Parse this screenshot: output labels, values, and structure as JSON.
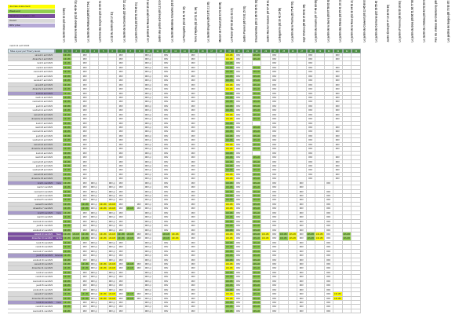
{
  "legend": [
    {
      "label": "Journée événement",
      "color": "#ffff00"
    },
    {
      "label": "Week-end",
      "color": "#92d050"
    },
    {
      "label": "Vacances scolaires / J.F.",
      "color": "#7a4e9f"
    },
    {
      "label": "Ouvert",
      "color": "#d9d9d9"
    },
    {
      "label": "RDV privé",
      "color": "#b5a9d6"
    }
  ],
  "header_date": "mardi 11 avril 2023",
  "column_headers": [
    "Le Jardin Oasis (03 33 10 89)",
    "La Blanche Maison (02 83 49 54 31)",
    "Le Jardin du Rolland (06 59 17 54)",
    "La ferme des bruyères (02 23 06 01 14)",
    "Le 22 du Jardin (03 17 21)",
    "Le Jardin de la Corolle (02 35 57 21)",
    "Le jardin Chez (02 35 51 75 40 31)",
    "Les jardins de Nouan (06 07 25 05 14)",
    "Jardin des petits arbres (06 12 33 24)",
    "Le Jardin Mandelou Granville (03 37)",
    "La Planquette (02 22 41 76 19)",
    "Terre d'Hydra (02 10 51 91 34)",
    "Le Jardin Bruyère (06 18 51 11 30)",
    "Manoir de l'Ouest (02 33 51 40 06)",
    "Le Rosier (07 83 28 21 02 15)",
    "Jardin Prunier (06 73 81 15 61)",
    "Brouchevilles (06 11 86 70 06 51 33)",
    "Jardin Rocher Couture (07 97 34 81 03)",
    "La Baguierre (02 33 42 14 58)",
    "Le jardin de la Prairie (02 75 47 91)",
    "Sept Chênes (06 88 15 90 91 06)",
    "Le jardin du moulin (07 77 48 80 09)",
    "Le jardin de la Sacre (06 87 58 02 82)",
    "Le jardin des tilleuls (02 35 41 16 11)",
    "Le jardin de la Rose (02 33 34 52 21)",
    "Le jardin du Couvent (06 12 45 80 81)",
    "Le jardin de Cormoran (02 39 55 42 21 30)",
    "Jardin Émile (06 77 10 20 53 30)",
    "Le jardin d'Yvonne (06 63 55 30 83)",
    "Le jardin du Bois (06 66 51 96 77 90)",
    "Le Jardin du château (06 42 52 28 62)",
    "Parc du château de Chamberoy (06 46 99)",
    "Les jardins de Garges (06 73 93 05 30)"
  ],
  "grid_header": {
    "label": "Mise à jour par Thierry lauret",
    "column_numbers": [
      "1",
      "2",
      "3",
      "4",
      "5",
      "6",
      "7",
      "8",
      "9",
      "10",
      "11",
      "12",
      "13",
      "14",
      "15",
      "16",
      "17",
      "18",
      "19",
      "20",
      "21",
      "22",
      "23",
      "24",
      "25",
      "26",
      "27",
      "28",
      "29",
      "30",
      "31",
      "32",
      "33"
    ]
  },
  "rows": [
    {
      "date": "samedi 1 avril 2023",
      "side": "",
      "type": "weekend",
      "cells": "g:14h-18h|w:|w:RDV|w:|w:|w:|w:RDV|w:|w:|w:RDV gr|w:|w:RDV|w:|w:|w:RDV|w:|w:|w:|y:14h-18h|w:RDV|w:|g:14h-18h|w:|w:RDV|w:|w:|w:|w:RDV|w:|w:|w:RDV|w:|w:"
    },
    {
      "date": "dimanche 2 avril 2023",
      "side": "",
      "type": "weekend",
      "cells": "g:14h-18h|w:|w:RDV|w:|w:|w:|w:RDV|w:|w:|w:RDV gr|w:|w:RDV|w:|w:|w:RDV|w:|w:|w:|y:14h-18h|w:RDV|w:|g:10h-12h|w:|w:RDV|w:|w:|w:|w:RDV|w:|w:|w:RDV|w:|w:"
    },
    {
      "date": "lundi 3 avril 2023",
      "side": "",
      "type": "",
      "cells": "g:14h-18h|w:|w:RDV|w:|w:|w:|w:RDV|w:|w:|w:RDV gr|w:|w:RDV|w:|w:|w:RDV|w:|w:|w:|g:14h-18h|w:RDV|w:|w:|w:|w:RDV|w:|w:|w:|w:RDV|w:|w:|w:|w:|w:"
    },
    {
      "date": "mardi 4 avril 2023",
      "side": "",
      "type": "",
      "cells": "g:14h-18h|w:|w:RDV|w:|w:|w:|w:RDV|w:|w:|w:RDV gr|w:|w:RDV|w:|w:|w:RDV|w:|w:|w:|g:14h-18h|w:RDV|w:|g:10h-12h|w:|w:RDV|w:|w:|w:|w:RDV|w:|w:|w:RDV|w:|w:"
    },
    {
      "date": "mercredi 5 avril 2023",
      "side": "",
      "type": "",
      "cells": "g:14h-18h|w:|w:RDV|w:|w:|w:|w:RDV|w:|w:|w:RDV gr|w:|w:RDV|w:|w:|w:RDV|w:|w:|w:|g:14h-18h|w:RDV|w:|g:10h-12h|w:|w:RDV|w:|w:|w:|w:RDV|w:|w:|w:RDV|w:|w:"
    },
    {
      "date": "jeudi 6 avril 2023",
      "side": "",
      "type": "",
      "cells": "g:14h-18h|w:|w:RDV|w:|w:|w:|w:RDV|w:|w:|w:RDV gr|w:|w:RDV|w:|w:|w:RDV|w:|w:|w:|g:14h-18h|w:RDV|w:|g:10h-12h|w:|w:RDV|w:|w:|w:|w:RDV|w:|w:|w:RDV|w:|w:"
    },
    {
      "date": "vendredi 7 avril 2023",
      "side": "",
      "type": "",
      "cells": "g:14h-18h|w:|w:RDV|w:|w:|w:|w:RDV|w:|w:|w:RDV gr|w:|w:RDV|w:|w:|w:RDV|w:|w:|w:|g:14h-18h|w:RDV|w:|g:10h-12h|w:|w:RDV|w:|w:|w:|w:RDV|w:|w:|w:RDV|w:|w:"
    },
    {
      "date": "samedi 8 avril 2023",
      "side": "",
      "type": "weekend",
      "cells": "g:14h-18h|w:|w:RDV|w:|w:|w:|w:RDV|w:|w:|w:RDV gr|w:|w:RDV|w:|w:|w:RDV|w:|w:|w:|y:14h-18h|w:RDV|w:|g:10h-12h|w:|w:RDV|w:|w:|w:|w:RDV|w:|w:|w:RDV|w:|w:"
    },
    {
      "date": "dimanche 9 avril 2023",
      "side": "",
      "type": "weekend",
      "cells": "g:14h-18h|w:|w:RDV|w:|w:|w:|w:RDV|w:|w:|w:RDV gr|w:|w:RDV|w:|w:|w:RDV|w:|w:|w:|y:14h-18h|w:RDV|w:|g:10h-12h|w:|w:RDV|w:|w:|w:|w:RDV|w:|w:|w:RDV|w:|w:"
    },
    {
      "date": "lundi 10 avril 2023",
      "side": "",
      "type": "holiday",
      "cells": "g:14h-18h|w:|w:RDV|w:|w:|w:|w:RDV|w:|w:|w:RDV gr|w:|w:RDV|w:|w:|w:RDV|w:|w:|w:|g:14h-18h|w:RDV|w:|g:10h-12h|w:|w:RDV|w:|w:|w:|w:RDV|w:|w:|w:RDV|w:|w:"
    },
    {
      "date": "mardi 11 avril 2023",
      "side": "",
      "type": "",
      "cells": "g:14h-18h|w:|w:RDV|w:|w:|w:|w:RDV|w:|w:|w:RDV gr|w:|w:RDV|w:|w:|w:RDV|w:|w:|w:|g:14h-18h|w:RDV|w:|g:10h-12h|w:|w:RDV|w:|w:|w:|w:RDV|w:|w:|w:RDV|w:|w:"
    },
    {
      "date": "mercredi 12 avril 2023",
      "side": "",
      "type": "",
      "cells": "g:14h-18h|w:|w:RDV|w:|w:|w:|w:RDV|w:|w:|w:RDV gr|w:|w:RDV|w:|w:|w:RDV|w:|w:|w:|g:14h-18h|w:RDV|w:|g:10h-12h|w:|w:RDV|w:|w:|w:|w:RDV|w:|w:|w:RDV|w:|w:"
    },
    {
      "date": "jeudi 13 avril 2023",
      "side": "",
      "type": "",
      "cells": "g:14h-18h|w:|w:RDV|w:|w:|w:|w:RDV|w:|w:|w:RDV gr|w:|w:RDV|w:|w:|w:RDV|w:|w:|w:|g:14h-18h|w:RDV|w:|g:10h-12h|w:|w:RDV|w:|w:|w:|w:RDV|w:|w:|w:RDV|w:|w:"
    },
    {
      "date": "vendredi 14 avril 2023",
      "side": "",
      "type": "",
      "cells": "g:14h-18h|w:|w:RDV|w:|w:|w:|w:RDV|w:|w:|w:RDV gr|w:|w:RDV|w:|w:|w:RDV|w:|w:|w:|g:14h-18h|w:RDV|w:|g:10h-12h|w:|w:RDV|w:|w:|w:|w:RDV|w:|w:|w:RDV|w:|w:"
    },
    {
      "date": "samedi 15 avril 2023",
      "side": "",
      "type": "weekend",
      "cells": "g:14h-18h|w:|w:RDV|w:|w:|w:|w:RDV|w:|w:|w:RDV gr|w:|w:RDV|w:|w:|w:RDV|w:|w:|w:|y:14h-18h|w:RDV|w:|g:10h-12h|w:|w:RDV|w:|w:|w:|w:RDV|w:|w:|w:RDV|w:|w:"
    },
    {
      "date": "dimanche 16 avril 2023",
      "side": "",
      "type": "weekend",
      "cells": "g:14h-18h|w:|w:RDV|w:|w:|w:|w:RDV|w:|w:|w:RDV gr|w:|w:RDV|w:|w:|w:RDV|w:|w:|w:|y:14h-18h|w:RDV|w:|g:10h-12h|w:|w:RDV|w:|w:|w:|w:RDV|w:|w:|w:RDV|w:|w:"
    },
    {
      "date": "lundi 17 avril 2023",
      "side": "",
      "type": "",
      "cells": "g:14h-18h|w:|w:RDV|w:|w:|w:|w:RDV|w:|w:|w:RDV gr|w:|w:RDV|w:|w:|w:RDV|w:|w:|w:|g:14h-18h|w:RDV|w:|w:|w:|w:RDV|w:|w:|w:|w:RDV|w:|w:|w:|w:|w:"
    },
    {
      "date": "mardi 18 avril 2023",
      "side": "",
      "type": "",
      "cells": "g:14h-18h|w:|w:RDV|w:|w:|w:|w:RDV|w:|w:|w:RDV gr|w:|w:RDV|w:|w:|w:RDV|w:|w:|w:|g:14h-18h|w:RDV|w:|g:10h-12h|w:|w:RDV|w:|w:|w:|w:RDV|w:|w:|w:RDV|w:|w:"
    },
    {
      "date": "mercredi 19 avril 2023",
      "side": "",
      "type": "",
      "cells": "g:14h-18h|w:|w:RDV|w:|w:|w:|w:RDV|w:|w:|w:RDV gr|w:|w:RDV|w:|w:|w:RDV|w:|w:|w:|g:14h-18h|w:RDV|w:|g:10h-12h|w:|w:RDV|w:|w:|w:|w:RDV|w:|w:|w:RDV|w:|w:"
    },
    {
      "date": "jeudi 20 avril 2023",
      "side": "",
      "type": "",
      "cells": "g:14h-18h|w:|w:RDV|w:|w:|w:|w:RDV|w:|w:|w:RDV gr|w:|w:RDV|w:|w:|w:RDV|w:|w:|w:|g:14h-18h|w:RDV|w:|g:10h-12h|w:|w:RDV|w:|w:|w:|w:RDV|w:|w:|w:RDV|w:|w:"
    },
    {
      "date": "vendredi 21 avril 2023",
      "side": "",
      "type": "",
      "cells": "g:14h-18h|w:|w:RDV|w:|w:|w:|w:RDV|w:|w:|w:RDV gr|w:|w:RDV|w:|w:|w:RDV|w:|w:|w:|g:14h-18h|w:RDV|w:|g:10h-12h|w:|w:RDV|w:|w:|w:|w:RDV|w:|w:|w:RDV|w:|w:"
    },
    {
      "date": "samedi 22 avril 2023",
      "side": "",
      "type": "weekend",
      "cells": "g:14h-18h|w:|w:RDV|w:|w:|w:|w:RDV|w:|w:|w:RDV gr|w:|w:RDV|w:|w:|w:RDV|w:|w:|w:|y:14h-18h|w:RDV|w:|g:10h-12h|w:|w:RDV|w:|w:|w:|w:RDV|w:|w:|w:RDV|w:|w:"
    },
    {
      "date": "dimanche 23 avril 2023",
      "side": "",
      "type": "weekend",
      "cells": "g:14h-18h|w:|w:RDV|w:|w:|w:|w:RDV|w:|w:|w:RDV gr|w:|w:RDV|w:|w:|w:RDV|w:|w:|w:|y:14h-18h|w:RDV|w:|g:10h-12h|w:|w:RDV|w:|w:|w:|w:RDV|w:|w:|w:RDV|w:|w:"
    },
    {
      "date": "lundi 24 avril 2023",
      "side": "",
      "type": "",
      "cells": "g:14h-18h|w:|w:RDV|w:|w:|w:|w:RDV|w:|w:|w:RDV gr|w:|w:RDV|w:|w:|w:RDV|w:|w:|w:|g:14h-18h|w:RDV|w:|w:|w:|w:RDV|w:|w:|w:|w:RDV|w:|w:|w:|w:|w:"
    },
    {
      "date": "mardi 25 avril 2023",
      "side": "",
      "type": "",
      "cells": "g:14h-18h|w:|w:RDV|w:|w:|w:|w:RDV|w:|w:|w:RDV gr|w:|w:RDV|w:|w:|w:RDV|w:|w:|w:|g:14h-18h|w:RDV|w:|g:10h-12h|w:|w:RDV|w:|w:|w:|w:RDV|w:|w:|w:RDV|w:|w:"
    },
    {
      "date": "mercredi 26 avril 2023",
      "side": "",
      "type": "",
      "cells": "g:14h-18h|w:|w:RDV|w:|w:|w:|w:RDV|w:|w:|w:RDV gr|w:|w:RDV|w:|w:|w:RDV|w:|w:|w:|g:14h-18h|w:RDV|w:|g:10h-12h|w:|w:RDV|w:|w:|w:|w:RDV|w:|w:|w:RDV|w:|w:"
    },
    {
      "date": "jeudi 27 avril 2023",
      "side": "",
      "type": "",
      "cells": "g:14h-18h|w:|w:RDV|w:|w:|w:|w:RDV|w:|w:|w:RDV gr|w:|w:RDV|w:|w:|w:RDV|w:|w:|w:|g:14h-18h|w:RDV|w:|g:10h-12h|w:|w:RDV|w:|w:|w:|w:RDV|w:|w:|w:RDV|w:|w:"
    },
    {
      "date": "vendredi 28 avril 2023",
      "side": "",
      "type": "",
      "cells": "g:14h-18h|w:|w:RDV|w:|w:|w:|w:RDV|w:|w:|w:RDV gr|w:|w:RDV|w:|w:|w:RDV|w:|w:|w:|g:14h-18h|w:RDV|w:|g:10h-12h|w:|w:RDV|w:|w:|w:|w:RDV|w:|w:|w:RDV|w:|w:"
    },
    {
      "date": "samedi 29 avril 2023",
      "side": "",
      "type": "weekend",
      "cells": "g:14h-18h|w:|w:RDV|w:|w:|w:|w:RDV|w:|w:|w:RDV gr|w:|w:RDV|w:|w:|w:RDV|w:|w:|w:|y:14h-18h|w:RDV|w:|g:10h-12h|w:|w:RDV|w:|w:|w:|w:RDV|w:|w:|w:RDV|w:|w:"
    },
    {
      "date": "dimanche 30 avril 2023",
      "side": "",
      "type": "weekend",
      "cells": "g:14h-18h|w:|w:RDV|w:|w:|w:|w:RDV|w:|w:|w:RDV gr|w:|w:RDV|w:|w:|w:RDV|w:|w:|w:|y:14h-18h|w:RDV|w:|g:10h-12h|w:|w:RDV|w:|w:|w:|w:RDV|w:|w:|w:RDV|w:|w:"
    },
    {
      "date": "lundi 1 mai 2023",
      "side": "Férié",
      "type": "holiday",
      "cells": "g:14h-18h|w:|w:RDV|w:RDV gr|w:|w:RDV gr|w:RDV|w:|w:|w:RDV gr|w:|w:RDV|w:|w:|w:RDV|w:|w:|w:|g:14h-18h|w:RDV|w:|g:10h-12h|w:|w:RDV|w:|w:|w:RDV|w:|w:|w:RDV|w:|w:|w:"
    },
    {
      "date": "mardi 2 mai 2023",
      "side": "",
      "type": "",
      "cells": "g:14h-18h|w:|w:RDV|w:RDV gr|w:|w:RDV gr|w:RDV|w:|w:|w:RDV gr|w:|w:RDV|w:|w:|w:RDV|w:|w:|w:|g:14h-18h|w:RDV|w:|g:10h-12h|w:|w:RDV|w:|w:|w:RDV|w:|w:|w:|w:|w:|w:"
    },
    {
      "date": "mercredi 3 mai 2023",
      "side": "",
      "type": "",
      "cells": "g:14h-18h|w:|w:RDV|w:RDV gr|w:|w:RDV gr|w:RDV|w:|w:|w:RDV gr|w:|w:RDV|w:|w:|w:RDV|w:|w:|w:|g:14h-18h|w:RDV|w:|g:10h-12h|w:|w:RDV|w:|w:|w:RDV|w:|w:|w:RDV|w:|w:|w:"
    },
    {
      "date": "jeudi 4 mai 2023",
      "side": "",
      "type": "",
      "cells": "g:14h-18h|w:|w:RDV|w:RDV gr|w:|w:RDV gr|w:RDV|w:|w:|w:RDV gr|w:|w:RDV|w:|w:|w:RDV|w:|w:|w:|g:14h-18h|w:RDV|w:|g:10h-12h|w:|w:RDV|w:|w:|w:RDV|w:|w:|w:RDV|w:|w:|w:"
    },
    {
      "date": "vendredi 5 mai 2023",
      "side": "",
      "type": "",
      "cells": "g:14h-18h|w:|w:RDV|w:RDV gr|w:|w:RDV gr|w:RDV|w:|w:|w:RDV gr|w:|w:RDV|w:|w:|w:RDV|w:|w:|w:|g:14h-18h|w:RDV|w:|g:10h-12h|w:|w:RDV|w:|w:|w:RDV|w:|w:|w:RDV|w:|w:|w:"
    },
    {
      "date": "samedi 6 mai 2023",
      "side": "",
      "type": "weekend",
      "cells": "g:14h-18h|w:|g:14h-18h|w:RDV gr|y:14h-18h|y:14h-18h|w:RDV|w:|w:RDV|w:RDV gr|w:|w:RDV|w:|w:|w:RDV|w:|w:|w:|y:14h-18h|w:RDV|w:|g:10h-12h|w:|w:RDV|w:|w:|w:RDV|w:|w:|w:RDV|w:|w:|w:"
    },
    {
      "date": "dimanche 7 mai 2023",
      "side": "",
      "type": "weekend",
      "cells": "g:14h-18h|w:|g:14h-18h|w:RDV gr|y:14h-18h|y:14h-18h|w:RDV|g:14h-18h|w:RDV|w:RDV gr|w:|w:RDV|w:|w:|w:RDV|w:|w:|w:|y:14h-18h|w:RDV|w:|g:10h-12h|w:|w:RDV|w:|w:|w:RDV|w:|w:|w:RDV|w:|w:|w:"
    },
    {
      "date": "lundi 8 mai 2023",
      "side": "Férié",
      "type": "holiday",
      "cells": "g:14h-18h|w:|w:RDV|w:RDV gr|w:|w:RDV gr|w:RDV|w:|w:|w:RDV gr|w:|w:RDV|w:|w:|w:RDV|w:|w:|w:|g:14h-18h|w:RDV|w:|g:10h-12h|w:|w:RDV|w:|w:|w:RDV|w:|w:|w:RDV|w:|w:|w:"
    },
    {
      "date": "mardi 9 mai 2023",
      "side": "",
      "type": "",
      "cells": "g:14h-18h|w:|w:RDV|w:RDV gr|w:|w:RDV gr|w:RDV|w:|w:|w:RDV gr|w:|w:RDV|w:|w:|w:RDV|w:|w:|w:|g:14h-18h|w:RDV|w:|g:10h-12h|w:|w:RDV|w:|w:|w:RDV|w:|w:|w:RDV|w:|w:|w:"
    },
    {
      "date": "mercredi 10 mai 2023",
      "side": "",
      "type": "",
      "cells": "g:14h-18h|w:|w:RDV|w:RDV gr|w:|w:RDV gr|w:RDV|w:|w:|w:RDV gr|w:|w:RDV|w:|w:|w:RDV|w:|w:|w:|g:14h-18h|w:RDV|w:|g:10h-12h|w:|w:RDV|w:|w:|w:RDV|w:|w:|w:RDV|w:|w:|w:"
    },
    {
      "date": "jeudi 11 mai 2023",
      "side": "",
      "type": "",
      "cells": "g:14h-18h|w:|w:RDV|w:RDV gr|w:|w:RDV gr|w:RDV|w:|w:|w:RDV gr|w:|w:RDV|w:|w:|w:RDV|w:|w:|w:|g:14h-18h|w:RDV|w:|g:10h-12h|w:|w:RDV|w:|w:|w:RDV|w:|w:|w:RDV|w:|w:|w:"
    },
    {
      "date": "vendredi 12 mai 2023",
      "side": "",
      "type": "",
      "cells": "g:14h-18h|w:|w:RDV|w:RDV gr|w:|w:RDV gr|w:RDV|w:|w:|w:RDV gr|w:|w:RDV|w:|w:|w:RDV|w:|w:|w:|g:14h-18h|w:RDV|w:|g:10h-12h|w:|w:RDV|w:|w:|w:RDV|w:|w:|w:RDV|w:|w:|w:"
    },
    {
      "date": "samedi 13 mai 2023",
      "side": "Week-end",
      "type": "special",
      "cells": "g:14h-18h|g:14h-18h|g:14h-18h|w:RDV gr|y:14h-18h|y:14h-18h|g:14h-18h|g:14h-18h|w:RDV|w:RDV gr|w:|g:14h-18h|y:14h-18h|w:|w:RDV|w:|w:|w:|y:14h-18h|w:RDV|w:|g:10h-12h|y:14h-18h|w:RDV|g:14h-18h|y:14h-18h|w:RDV|g:14h-18h|y:14h-18h|w:RDV|w:|g:14h-18h|w:"
    },
    {
      "date": "dimanche 14 mai 2023",
      "side": "Jardins",
      "type": "special",
      "cells": "g:14h-18h|g:14h-18h|g:14h-18h|w:RDV gr|y:14h-18h|y:14h-18h|g:14h-18h|g:14h-18h|w:RDV|w:RDV gr|w:|g:14h-18h|y:14h-18h|w:|w:RDV|w:|w:|w:|y:14h-18h|w:RDV|w:|g:10h-12h|y:14h-18h|w:RDV|g:14h-18h|y:14h-18h|w:RDV|g:14h-18h|y:14h-18h|w:RDV|w:|g:14h-18h|w:"
    },
    {
      "date": "lundi 15 mai 2023",
      "side": "",
      "type": "",
      "cells": "g:14h-18h|w:|w:RDV|w:RDV gr|w:|w:RDV gr|w:RDV|w:|w:|w:RDV gr|w:|w:RDV|w:|w:|w:RDV|w:|w:|w:|g:14h-18h|w:RDV|w:|g:10h-12h|w:|w:RDV|w:|w:|w:RDV|w:|w:|w:RDV|w:|w:|w:"
    },
    {
      "date": "mardi 16 mai 2023",
      "side": "",
      "type": "",
      "cells": "g:14h-18h|w:|w:RDV|w:RDV gr|w:|w:RDV gr|w:RDV|w:|w:|w:RDV gr|w:|w:RDV|w:|w:|w:RDV|w:|w:|w:|g:14h-18h|w:RDV|w:|g:10h-12h|w:|w:RDV|w:|w:|w:RDV|w:|w:|w:RDV|w:|w:|w:"
    },
    {
      "date": "mercredi 17 mai 2023",
      "side": "",
      "type": "",
      "cells": "g:14h-18h|w:|w:RDV|w:RDV gr|w:|w:RDV gr|w:RDV|w:|w:|w:RDV gr|w:|w:RDV|w:|w:|w:RDV|w:|w:|w:|g:14h-18h|w:RDV|w:|g:10h-12h|w:|w:RDV|w:|w:|w:RDV|w:|w:|w:RDV|w:|w:|w:"
    },
    {
      "date": "jeudi 18 mai 2023",
      "side": "Ascension",
      "type": "holiday",
      "cells": "g:14h-18h|w:|w:RDV|w:RDV gr|w:|w:RDV gr|w:RDV|w:|w:|w:RDV gr|w:|w:RDV|w:|w:|w:RDV|w:|w:|w:|g:14h-18h|w:RDV|w:|g:10h-12h|w:|w:RDV|w:|w:|w:RDV|w:|w:|w:RDV|w:|w:|w:"
    },
    {
      "date": "vendredi 19 mai 2023",
      "side": "",
      "type": "",
      "cells": "g:14h-18h|w:|w:RDV|w:RDV gr|w:|w:RDV gr|w:RDV|w:|w:|w:RDV gr|w:|w:RDV|w:|w:|w:RDV|w:|w:|w:|g:14h-18h|w:RDV|w:|g:10h-12h|w:|w:RDV|w:|w:|w:RDV|w:|w:|w:RDV|w:|w:|w:"
    },
    {
      "date": "samedi 20 mai 2023",
      "side": "",
      "type": "weekend",
      "cells": "g:14h-18h|w:|g:14h-18h|w:RDV gr|y:14h-18h|y:14h-18h|w:RDV|g:14h-18h|w:RDV|w:RDV gr|w:|w:RDV|w:|w:|w:RDV|w:|w:|w:|y:14h-18h|w:RDV|w:|g:10h-12h|w:|w:RDV|w:|w:|w:RDV|w:|w:|w:RDV|w:|w:|w:"
    },
    {
      "date": "dimanche 21 mai 2023",
      "side": "",
      "type": "weekend",
      "cells": "g:14h-18h|w:|g:14h-18h|w:RDV gr|y:14h-18h|y:14h-18h|w:RDV|g:14h-18h|w:RDV|w:RDV gr|w:|w:RDV|w:|w:|w:RDV|w:|w:|w:|y:14h-18h|w:RDV|w:|g:10h-12h|w:|w:RDV|w:|w:|w:RDV|w:|w:|w:RDV|w:|w:|w:"
    },
    {
      "date": "lundi 22 mai 2023",
      "side": "",
      "type": "",
      "cells": "g:14h-18h|w:|w:RDV|w:RDV gr|w:|w:RDV gr|w:RDV|w:|w:|w:RDV gr|w:|w:RDV|w:|w:|w:RDV|w:|w:|w:|g:14h-18h|w:RDV|w:|g:10h-12h|w:|w:RDV|w:|w:|w:RDV|w:|w:|w:RDV|w:|w:|w:"
    },
    {
      "date": "mardi 23 mai 2023",
      "side": "",
      "type": "",
      "cells": "g:14h-18h|w:|w:RDV|w:RDV gr|w:|w:RDV gr|w:RDV|w:|w:|w:RDV gr|w:|w:RDV|w:|w:|w:RDV|w:|w:|w:|g:14h-18h|w:RDV|w:|g:10h-12h|w:|w:RDV|w:|w:|w:RDV|w:|w:|w:RDV|w:|w:|w:"
    },
    {
      "date": "mercredi 24 mai 2023",
      "side": "",
      "type": "",
      "cells": "g:14h-18h|w:|w:RDV|w:RDV gr|w:|w:RDV gr|w:RDV|w:|w:|w:RDV gr|w:|w:RDV|w:|w:|w:RDV|w:|w:|w:|g:14h-18h|w:RDV|w:|g:10h-12h|w:|w:RDV|w:|w:|w:RDV|w:|w:|w:RDV|w:|w:|w:"
    },
    {
      "date": "jeudi 25 mai 2023",
      "side": "",
      "type": "",
      "cells": "g:14h-18h|w:|w:RDV|w:RDV gr|w:|w:RDV gr|w:RDV|w:|w:|w:RDV gr|w:|w:RDV|w:|w:|w:RDV|w:|w:|w:|g:14h-18h|w:RDV|w:|g:10h-12h|w:|w:RDV|w:|w:|w:RDV|w:|w:|w:RDV|w:|w:|w:"
    },
    {
      "date": "vendredi 26 mai 2023",
      "side": "",
      "type": "",
      "cells": "g:14h-18h|w:|w:RDV|w:RDV gr|w:|w:RDV gr|w:RDV|w:|w:|w:RDV gr|w:|w:RDV|w:|w:|w:RDV|w:|w:|w:|g:14h-18h|w:RDV|w:|g:10h-12h|w:|w:RDV|w:|w:|w:RDV|w:|w:|w:RDV|w:|w:|w:"
    },
    {
      "date": "samedi 27 mai 2023",
      "side": "",
      "type": "weekend",
      "cells": "g:14h-18h|w:|g:14h-18h|w:RDV gr|y:14h-18h|y:14h-18h|w:RDV|g:14h-18h|w:RDV|w:RDV gr|w:|w:RDV|w:|w:|w:RDV|w:|w:|w:|y:14h-18h|w:RDV|w:|g:10h-12h|w:|w:RDV|w:|w:|w:RDV|w:|w:|w:RDV|y:14h-18h|w:|w:"
    },
    {
      "date": "dimanche 28 mai 2023",
      "side": "",
      "type": "weekend",
      "cells": "g:14h-18h|w:|g:14h-18h|w:RDV gr|y:14h-18h|y:14h-18h|w:RDV|g:14h-18h|w:RDV|w:RDV gr|w:|w:RDV|w:|w:|w:RDV|w:|w:|w:|y:14h-18h|w:RDV|w:|g:10h-12h|w:|w:RDV|w:|w:|w:RDV|w:|w:|w:RDV|y:14h-18h|w:|w:"
    },
    {
      "date": "lundi 29 mai 2023",
      "side": "Férié",
      "type": "holiday",
      "cells": "g:14h-18h|w:|w:RDV|w:RDV gr|w:|w:RDV gr|w:RDV|w:|w:|w:RDV gr|w:|w:RDV|w:|w:|w:RDV|w:|w:|w:|g:14h-18h|w:RDV|w:|g:10h-12h|w:|w:RDV|w:|w:|w:RDV|w:|w:|w:RDV|w:|w:|w:"
    },
    {
      "date": "mardi 30 mai 2023",
      "side": "",
      "type": "",
      "cells": "g:14h-18h|w:|w:RDV|w:RDV gr|w:|w:RDV gr|w:RDV|w:|w:|w:RDV gr|w:|w:RDV|w:|w:|w:RDV|w:|w:|w:|g:14h-18h|w:RDV|w:|g:10h-12h|w:|w:RDV|w:|w:|w:RDV|w:|w:|w:RDV|w:|w:|w:"
    },
    {
      "date": "mercredi 31 mai 2023",
      "side": "",
      "type": "",
      "cells": "g:14h-18h|w:|w:RDV|w:RDV gr|w:|w:RDV gr|w:RDV|w:|w:|w:RDV gr|w:|w:RDV|w:|w:|w:RDV|w:|w:|w:|g:14h-18h|w:RDV|w:|g:10h-12h|w:|w:RDV|w:|w:|w:RDV|w:|w:|w:RDV|w:|w:|w:"
    }
  ]
}
